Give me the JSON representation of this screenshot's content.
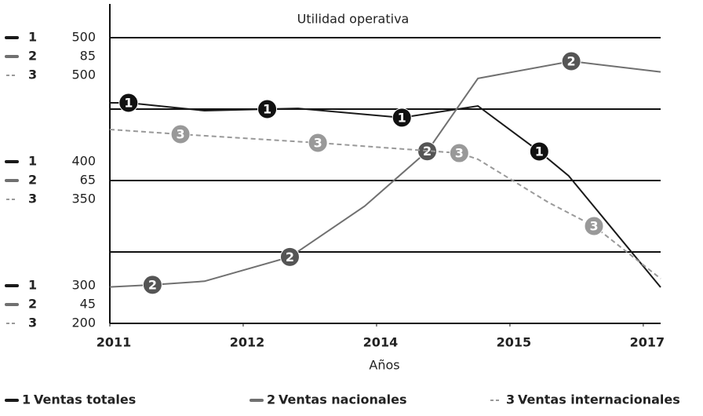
{
  "chart_data": {
    "type": "line",
    "title": "Utilidad operativa",
    "x_label": "Años",
    "xlim": [
      0,
      4.13
    ],
    "xticks": [
      {
        "value": 0,
        "label": "2011"
      },
      {
        "value": 1,
        "label": "2012"
      },
      {
        "value": 2,
        "label": "2014"
      },
      {
        "value": 3,
        "label": "2015"
      },
      {
        "value": 4,
        "label": "2017"
      }
    ],
    "grid": true,
    "series": [
      {
        "id": "1",
        "name": "Ventas totales",
        "color": "#1a1a1a",
        "marker_color": "#111111",
        "dashed": false,
        "ylim": [
          300,
          500
        ],
        "yticks": [
          300,
          400,
          500
        ],
        "x": [
          0,
          0.14,
          0.71,
          1.18,
          1.41,
          2.19,
          2.76,
          3.22,
          3.44,
          4.13
        ],
        "values": [
          454.4,
          454.4,
          448.9,
          450,
          450.5,
          444,
          452.2,
          420.3,
          403.3,
          325.3
        ],
        "markers": [
          1,
          3,
          5,
          7
        ]
      },
      {
        "id": "2",
        "name": "Ventas nacionales",
        "color": "#707070",
        "marker_color": "#555555",
        "dashed": false,
        "ylim": [
          45,
          85
        ],
        "yticks": [
          45,
          65,
          85
        ],
        "x": [
          0,
          0.32,
          0.71,
          1.35,
          1.91,
          2.38,
          2.76,
          3.46,
          4.13
        ],
        "values": [
          50.1,
          50.4,
          50.9,
          54.3,
          61.4,
          69.1,
          79.3,
          81.7,
          80.2
        ],
        "markers": [
          1,
          3,
          5,
          7
        ]
      },
      {
        "id": "3",
        "name": "Ventas internacionales",
        "color": "#999999",
        "marker_color": "#999999",
        "dashed": true,
        "ylim": [
          200,
          500
        ],
        "yticks": [
          200,
          350,
          500
        ],
        "x": [
          0,
          0.53,
          1.56,
          2.62,
          2.76,
          3.29,
          3.63,
          4.13
        ],
        "values": [
          403.6,
          398.6,
          389.6,
          378.8,
          372.3,
          326.9,
          302.2,
          247
        ],
        "markers": [
          1,
          2,
          3,
          6
        ]
      }
    ]
  }
}
